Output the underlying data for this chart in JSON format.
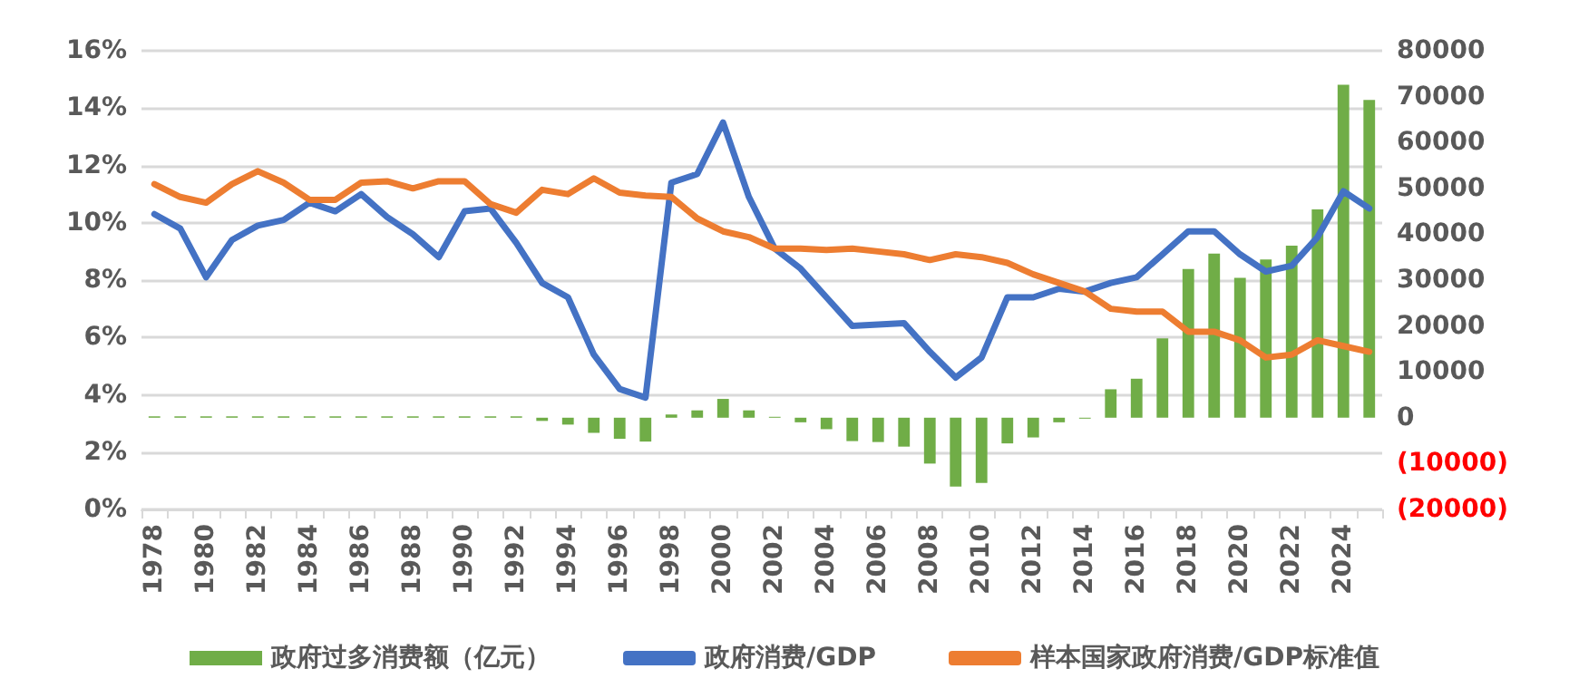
{
  "chart_data": {
    "type": "bar",
    "categories": [
      "1978",
      null,
      "1980",
      null,
      "1982",
      null,
      "1984",
      null,
      "1986",
      null,
      "1988",
      null,
      "1990",
      null,
      "1992",
      null,
      "1994",
      null,
      "1996",
      null,
      "1998",
      null,
      "2000",
      null,
      "2002",
      null,
      "2004",
      null,
      "2006",
      null,
      "2008",
      null,
      "2010",
      null,
      "2012",
      null,
      "2014",
      null,
      "2016",
      null,
      "2018",
      null,
      "2020",
      null,
      "2022",
      null,
      "2024",
      null
    ],
    "series": [
      {
        "name": "政府过多消费额（亿元）",
        "axis": "y2",
        "color": "#70ad47",
        "values": [
          300,
          300,
          300,
          300,
          300,
          300,
          300,
          300,
          300,
          300,
          300,
          300,
          300,
          300,
          300,
          -700,
          -1500,
          -3300,
          -4600,
          -5200,
          700,
          1600,
          4100,
          1600,
          200,
          -1000,
          -2500,
          -5100,
          -5300,
          -6300,
          -10000,
          -15000,
          -14200,
          -5600,
          -4300,
          -1000,
          -200,
          6200,
          8500,
          17300,
          32400,
          35800,
          30500,
          34500,
          37500,
          45400,
          72600,
          69300
        ]
      },
      {
        "name": "政府消费/GDP",
        "type": "line",
        "color": "#4472c4",
        "values": [
          10.3,
          9.8,
          8.1,
          9.4,
          9.9,
          10.1,
          10.7,
          10.4,
          11.0,
          10.2,
          9.6,
          8.8,
          10.4,
          10.5,
          9.3,
          7.9,
          7.4,
          5.4,
          4.2,
          3.9,
          11.4,
          11.7,
          13.5,
          10.9,
          9.1,
          8.4,
          7.4,
          6.4,
          6.45,
          6.5,
          5.5,
          4.6,
          5.3,
          7.4,
          7.4,
          7.7,
          7.6,
          7.9,
          8.1,
          8.9,
          9.7,
          9.7,
          8.9,
          8.3,
          8.5,
          9.5,
          11.1,
          10.5
        ]
      },
      {
        "name": "样本国家政府消费/GDP标准值",
        "type": "line",
        "color": "#ed7d31",
        "values": [
          11.35,
          10.9,
          10.7,
          11.35,
          11.8,
          11.4,
          10.8,
          10.8,
          11.4,
          11.45,
          11.2,
          11.45,
          11.45,
          10.65,
          10.35,
          11.15,
          11.0,
          11.55,
          11.05,
          10.95,
          10.9,
          10.15,
          9.7,
          9.5,
          9.1,
          9.1,
          9.05,
          9.1,
          9.0,
          8.9,
          8.7,
          8.9,
          8.8,
          8.6,
          8.2,
          7.9,
          7.6,
          7.0,
          6.9,
          6.9,
          6.2,
          6.2,
          5.9,
          5.3,
          5.4,
          5.9,
          5.7,
          5.5
        ]
      }
    ],
    "ylim": [
      0,
      16
    ],
    "yticks": [
      {
        "value": 0,
        "label": "0%"
      },
      {
        "value": 2,
        "label": "2%"
      },
      {
        "value": 4,
        "label": "4%"
      },
      {
        "value": 6,
        "label": "6%"
      },
      {
        "value": 8,
        "label": "8%"
      },
      {
        "value": 10,
        "label": "10%"
      },
      {
        "value": 12,
        "label": "12%"
      },
      {
        "value": 14,
        "label": "14%"
      },
      {
        "value": 16,
        "label": "16%"
      }
    ],
    "y2lim": [
      -20000,
      80000
    ],
    "y2ticks": [
      {
        "value": -20000,
        "label": "(20000)"
      },
      {
        "value": -10000,
        "label": "(10000)"
      },
      0,
      10000,
      20000,
      30000,
      40000,
      50000,
      60000,
      70000,
      80000
    ],
    "grid": "y",
    "legend": "bottom",
    "marker": "none",
    "line_style": "solid"
  }
}
